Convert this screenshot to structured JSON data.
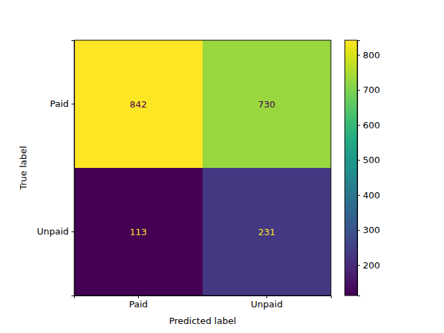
{
  "chart_data": {
    "type": "heatmap",
    "x_label": "Predicted label",
    "y_label": "True label",
    "x_categories": [
      "Paid",
      "Unpaid"
    ],
    "y_categories": [
      "Paid",
      "Unpaid"
    ],
    "cells": [
      [
        842,
        730
      ],
      [
        113,
        231
      ]
    ],
    "color": "viridis",
    "data_labels": true,
    "colorbar": {
      "range": [
        113,
        842
      ],
      "ticks": [
        200,
        300,
        400,
        500,
        600,
        700,
        800
      ]
    }
  }
}
